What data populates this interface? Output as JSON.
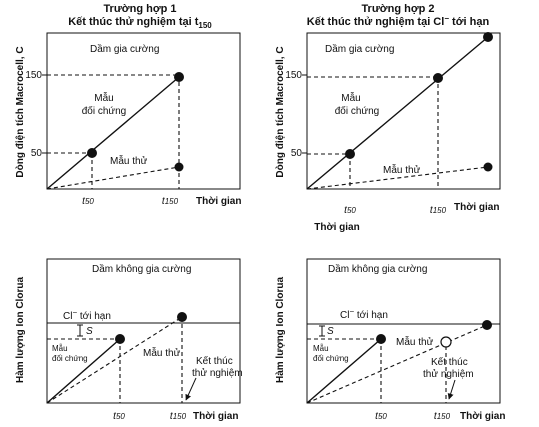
{
  "case1": {
    "title_line1": "Trường hợp 1",
    "title_line2": "Kết thúc thử nghiệm tại t",
    "title_sub": "150"
  },
  "case2": {
    "title_line1": "Trường hợp 2",
    "title_line2": "Kết thúc thử nghiệm tại Cl",
    "title_sup": "−",
    "title_tail": " tới hạn"
  },
  "top_left": {
    "box_label": "Dầm gia cường",
    "ylabel": "Dòng điện tích Macrocell, C",
    "tick_150": "150",
    "tick_50": "50",
    "control_label_1": "Mẫu",
    "control_label_2": "đối chứng",
    "sample_label": "Mẫu thử",
    "x_t50": "t",
    "x_t50_sub": "50",
    "x_t150": "t",
    "x_t150_sub": "150",
    "xlabel": "Thời gian"
  },
  "top_right": {
    "box_label": "Dầm gia cường",
    "ylabel": "Dòng điện tích Macrocell, C",
    "tick_150": "150",
    "tick_50": "50",
    "control_label_1": "Mẫu",
    "control_label_2": "đối chứng",
    "sample_label": "Mẫu thử",
    "x_t50": "t",
    "x_t50_sub": "50",
    "x_t150": "t",
    "x_t150_sub": "150",
    "xlabel": "Thời gian",
    "xlabel_below": "Thời gian"
  },
  "bottom_left": {
    "box_label": "Dầm không gia cường",
    "ylabel": "Hàm lượng Ion Clorua",
    "cl_label": "Cl",
    "cl_sup": "−",
    "cl_tail": " tới hạn",
    "s_label": "S",
    "control_label_1": "Mẫu",
    "control_label_2": "đối chứng",
    "sample_label": "Mẫu thử",
    "end_label_1": "Kết thúc",
    "end_label_2": "thử nghiệm",
    "x_t50": "t",
    "x_t50_sub": "50",
    "x_t150": "t",
    "x_t150_sub": "150",
    "xlabel": "Thời gian"
  },
  "bottom_right": {
    "box_label": "Dầm không gia cường",
    "ylabel": "Hàm lượng Ion Clorua",
    "cl_label": "Cl",
    "cl_sup": "−",
    "cl_tail": " tới hạn",
    "s_label": "S",
    "control_label_1": "Mẫu",
    "control_label_2": "đối chứng",
    "sample_label": "Mẫu thử",
    "end_label_1": "Kết thúc",
    "end_label_2": "thử nghiệm",
    "x_t50": "t",
    "x_t50_sub": "50",
    "x_t150": "t",
    "x_t150_sub": "150",
    "xlabel": "Thời gian"
  }
}
